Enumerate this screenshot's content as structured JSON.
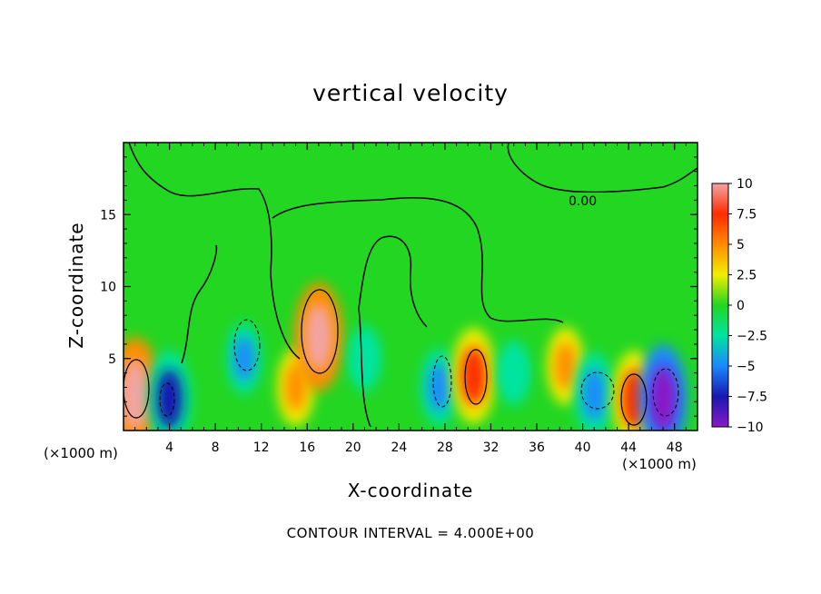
{
  "chart_data": {
    "type": "heatmap",
    "title": "vertical velocity",
    "xlabel": "X-coordinate",
    "ylabel": "Z-coordinate",
    "x_units": "(×1000 m)",
    "xlim": [
      0,
      50
    ],
    "ylim": [
      0,
      20
    ],
    "x_ticks": [
      4,
      8,
      12,
      16,
      20,
      24,
      28,
      32,
      36,
      40,
      44,
      48
    ],
    "y_ticks": [
      5,
      10,
      15
    ],
    "contour_label": "0.00",
    "footnote": "CONTOUR INTERVAL = 4.000E+00",
    "colorbar": {
      "ticks": [
        "10",
        "7.5",
        "5",
        "2.5",
        "0",
        "−2.5",
        "−5",
        "−7.5",
        "−10"
      ],
      "colors": [
        "#f3a4a4",
        "#ff2a00",
        "#ff8c00",
        "#f2ee00",
        "#22d622",
        "#00e4a0",
        "#1a88ff",
        "#1818b0",
        "#8a18c8"
      ]
    },
    "cells": [
      {
        "x": 1,
        "z": 2.5,
        "w": 11
      },
      {
        "x": 4,
        "z": 2.2,
        "w": -8
      },
      {
        "x": 10.5,
        "z": 5,
        "w": -4
      },
      {
        "x": 15,
        "z": 3,
        "w": 5
      },
      {
        "x": 17,
        "z": 6.5,
        "w": 10
      },
      {
        "x": 21,
        "z": 5,
        "w": -3
      },
      {
        "x": 27.5,
        "z": 3,
        "w": -5
      },
      {
        "x": 30.5,
        "z": 3.8,
        "w": 8
      },
      {
        "x": 34,
        "z": 4,
        "w": -3
      },
      {
        "x": 38.5,
        "z": 4.5,
        "w": 5
      },
      {
        "x": 41,
        "z": 2.5,
        "w": -6
      },
      {
        "x": 44.5,
        "z": 2.2,
        "w": 8
      },
      {
        "x": 47,
        "z": 2.2,
        "w": -10
      }
    ]
  }
}
